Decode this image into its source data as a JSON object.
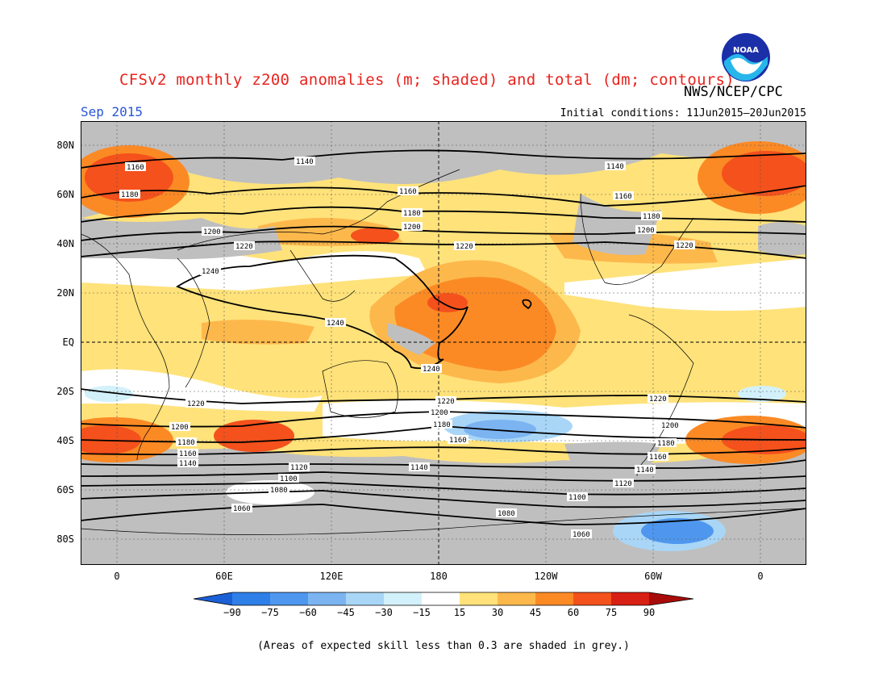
{
  "header": {
    "title": "CFSv2 monthly z200 anomalies (m; shaded) and total (dm; contours)",
    "agency": "NWS/NCEP/CPC",
    "valid_month": "Sep 2015",
    "initial_conditions": "Initial conditions: 11Jun2015–20Jun2015",
    "logo_text": "NOAA"
  },
  "axes": {
    "lat_labels": [
      "80N",
      "60N",
      "40N",
      "20N",
      "EQ",
      "20S",
      "40S",
      "60S",
      "80S"
    ],
    "lon_labels": [
      "0",
      "60E",
      "120E",
      "180",
      "120W",
      "60W",
      "0"
    ]
  },
  "contour_labels": [
    "1160",
    "1180",
    "1140",
    "1160",
    "1180",
    "1200",
    "1140",
    "1160",
    "1180",
    "1200",
    "1200",
    "1220",
    "1220",
    "1220",
    "1240",
    "1240",
    "1240",
    "1220",
    "1220",
    "1220",
    "1200",
    "1200",
    "1200",
    "1180",
    "1180",
    "1180",
    "1160",
    "1160",
    "1160",
    "1140",
    "1140",
    "1140",
    "1120",
    "1120",
    "1100",
    "1100",
    "1080",
    "1080",
    "1060",
    "1060"
  ],
  "colorbar": {
    "labels": [
      "−90",
      "−75",
      "−60",
      "−45",
      "−30",
      "−15",
      "15",
      "30",
      "45",
      "60",
      "75",
      "90"
    ],
    "colors": [
      "#1a5fd6",
      "#2f7fe8",
      "#4f97ee",
      "#7cb4f2",
      "#a9d6f7",
      "#d3f1fb",
      "#ffffff",
      "#ffe27a",
      "#fdb84c",
      "#fb8a25",
      "#f4511c",
      "#d81f13",
      "#a80c0a"
    ],
    "grey_color": "#bfbfbf"
  },
  "footnote": "(Areas of expected skill less than 0.3 are shaded in grey.)"
}
